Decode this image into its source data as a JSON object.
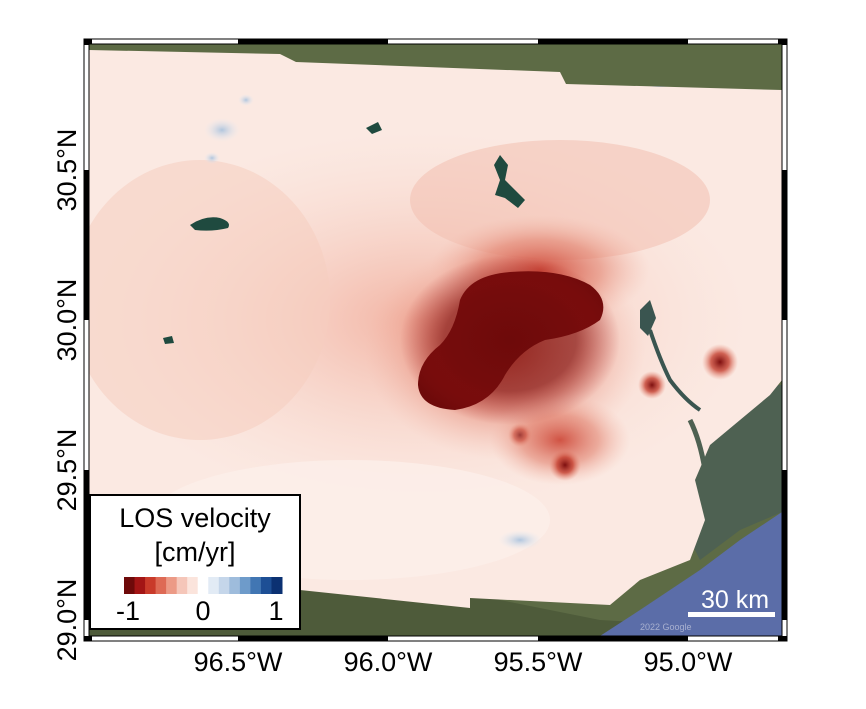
{
  "map": {
    "lon_ticks": [
      "96.5°W",
      "96.0°W",
      "95.5°W",
      "95.0°W"
    ],
    "lat_ticks": [
      "29.0°N",
      "29.5°N",
      "30.0°N",
      "30.5°N"
    ],
    "attribution": "2022 Google"
  },
  "legend": {
    "title_line1": "LOS velocity",
    "title_line2": "[cm/yr]",
    "min_label": "-1",
    "mid_label": "0",
    "max_label": "1",
    "colors": [
      "#6e0a0a",
      "#a31515",
      "#c93a2a",
      "#de6a55",
      "#ec9a86",
      "#f5c6b9",
      "#fbe4dc",
      "#ffffff",
      "#e2ebf5",
      "#c5d6ea",
      "#9ebcdc",
      "#6e9bca",
      "#4176b3",
      "#1d4f95",
      "#0b3172"
    ]
  },
  "scale_bar": {
    "label": "30 km"
  },
  "colors": {
    "uplift": "#2a5ea8",
    "zero": "#ffffff",
    "subsidence": "#6e0a0a",
    "basemap_land": "#5d6b45",
    "gulf_water": "#5b6da8"
  }
}
